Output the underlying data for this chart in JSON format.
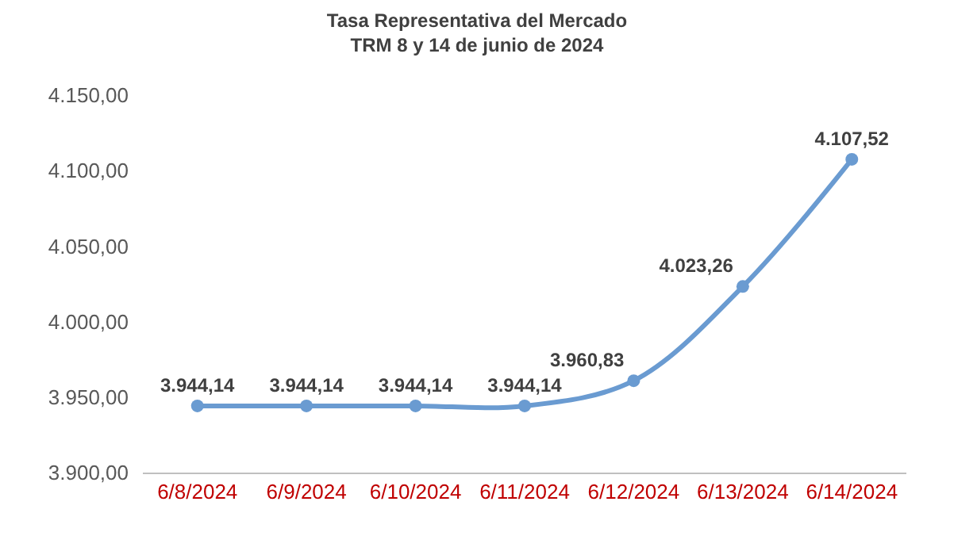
{
  "chart_data": {
    "type": "line",
    "title": "Tasa Representativa del Mercado\nTRM 8 y 14 de junio de 2024",
    "categories": [
      "6/8/2024",
      "6/9/2024",
      "6/10/2024",
      "6/11/2024",
      "6/12/2024",
      "6/13/2024",
      "6/14/2024"
    ],
    "series": [
      {
        "color": "#6a9bd1",
        "values": [
          3944.14,
          3944.14,
          3944.14,
          3944.14,
          3960.83,
          4023.26,
          4107.52
        ],
        "value_labels": [
          "3.944,14",
          "3.944,14",
          "3.944,14",
          "3.944,14",
          "3.960,83",
          "4.023,26",
          "4.107,52"
        ]
      }
    ],
    "ylim": [
      3900,
      4150
    ],
    "yticks": [
      {
        "value": 3900,
        "label": "3.900,00"
      },
      {
        "value": 3950,
        "label": "3.950,00"
      },
      {
        "value": 4000,
        "label": "4.000,00"
      },
      {
        "value": 4050,
        "label": "4.050,00"
      },
      {
        "value": 4100,
        "label": "4.100,00"
      },
      {
        "value": 4150,
        "label": "4.150,00"
      }
    ],
    "grid": false,
    "marker": "circle",
    "line_style": "solid"
  }
}
